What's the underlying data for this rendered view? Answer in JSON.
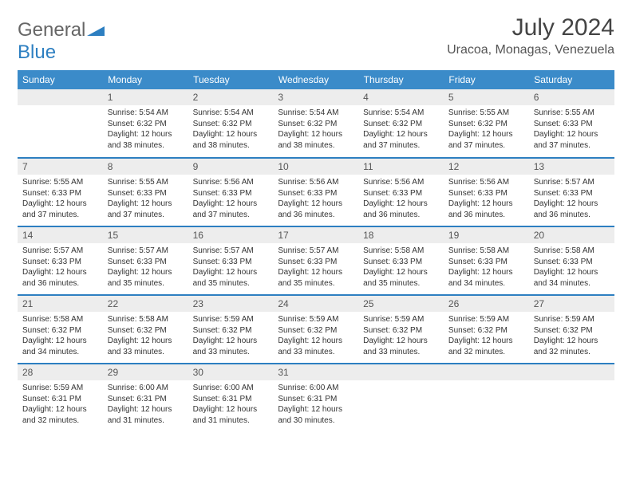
{
  "logo": {
    "general": "General",
    "blue": "Blue"
  },
  "title": "July 2024",
  "location": "Uracoa, Monagas, Venezuela",
  "colors": {
    "header_bg": "#3b8bc9",
    "header_text": "#ffffff",
    "row_border": "#2d7fc1",
    "daynum_bg": "#ededed",
    "logo_blue": "#2d7fc1"
  },
  "weekdays": [
    "Sunday",
    "Monday",
    "Tuesday",
    "Wednesday",
    "Thursday",
    "Friday",
    "Saturday"
  ],
  "start_offset": 1,
  "days": [
    {
      "n": 1,
      "sunrise": "5:54 AM",
      "sunset": "6:32 PM",
      "daylight": "12 hours and 38 minutes."
    },
    {
      "n": 2,
      "sunrise": "5:54 AM",
      "sunset": "6:32 PM",
      "daylight": "12 hours and 38 minutes."
    },
    {
      "n": 3,
      "sunrise": "5:54 AM",
      "sunset": "6:32 PM",
      "daylight": "12 hours and 38 minutes."
    },
    {
      "n": 4,
      "sunrise": "5:54 AM",
      "sunset": "6:32 PM",
      "daylight": "12 hours and 37 minutes."
    },
    {
      "n": 5,
      "sunrise": "5:55 AM",
      "sunset": "6:32 PM",
      "daylight": "12 hours and 37 minutes."
    },
    {
      "n": 6,
      "sunrise": "5:55 AM",
      "sunset": "6:33 PM",
      "daylight": "12 hours and 37 minutes."
    },
    {
      "n": 7,
      "sunrise": "5:55 AM",
      "sunset": "6:33 PM",
      "daylight": "12 hours and 37 minutes."
    },
    {
      "n": 8,
      "sunrise": "5:55 AM",
      "sunset": "6:33 PM",
      "daylight": "12 hours and 37 minutes."
    },
    {
      "n": 9,
      "sunrise": "5:56 AM",
      "sunset": "6:33 PM",
      "daylight": "12 hours and 37 minutes."
    },
    {
      "n": 10,
      "sunrise": "5:56 AM",
      "sunset": "6:33 PM",
      "daylight": "12 hours and 36 minutes."
    },
    {
      "n": 11,
      "sunrise": "5:56 AM",
      "sunset": "6:33 PM",
      "daylight": "12 hours and 36 minutes."
    },
    {
      "n": 12,
      "sunrise": "5:56 AM",
      "sunset": "6:33 PM",
      "daylight": "12 hours and 36 minutes."
    },
    {
      "n": 13,
      "sunrise": "5:57 AM",
      "sunset": "6:33 PM",
      "daylight": "12 hours and 36 minutes."
    },
    {
      "n": 14,
      "sunrise": "5:57 AM",
      "sunset": "6:33 PM",
      "daylight": "12 hours and 36 minutes."
    },
    {
      "n": 15,
      "sunrise": "5:57 AM",
      "sunset": "6:33 PM",
      "daylight": "12 hours and 35 minutes."
    },
    {
      "n": 16,
      "sunrise": "5:57 AM",
      "sunset": "6:33 PM",
      "daylight": "12 hours and 35 minutes."
    },
    {
      "n": 17,
      "sunrise": "5:57 AM",
      "sunset": "6:33 PM",
      "daylight": "12 hours and 35 minutes."
    },
    {
      "n": 18,
      "sunrise": "5:58 AM",
      "sunset": "6:33 PM",
      "daylight": "12 hours and 35 minutes."
    },
    {
      "n": 19,
      "sunrise": "5:58 AM",
      "sunset": "6:33 PM",
      "daylight": "12 hours and 34 minutes."
    },
    {
      "n": 20,
      "sunrise": "5:58 AM",
      "sunset": "6:33 PM",
      "daylight": "12 hours and 34 minutes."
    },
    {
      "n": 21,
      "sunrise": "5:58 AM",
      "sunset": "6:32 PM",
      "daylight": "12 hours and 34 minutes."
    },
    {
      "n": 22,
      "sunrise": "5:58 AM",
      "sunset": "6:32 PM",
      "daylight": "12 hours and 33 minutes."
    },
    {
      "n": 23,
      "sunrise": "5:59 AM",
      "sunset": "6:32 PM",
      "daylight": "12 hours and 33 minutes."
    },
    {
      "n": 24,
      "sunrise": "5:59 AM",
      "sunset": "6:32 PM",
      "daylight": "12 hours and 33 minutes."
    },
    {
      "n": 25,
      "sunrise": "5:59 AM",
      "sunset": "6:32 PM",
      "daylight": "12 hours and 33 minutes."
    },
    {
      "n": 26,
      "sunrise": "5:59 AM",
      "sunset": "6:32 PM",
      "daylight": "12 hours and 32 minutes."
    },
    {
      "n": 27,
      "sunrise": "5:59 AM",
      "sunset": "6:32 PM",
      "daylight": "12 hours and 32 minutes."
    },
    {
      "n": 28,
      "sunrise": "5:59 AM",
      "sunset": "6:31 PM",
      "daylight": "12 hours and 32 minutes."
    },
    {
      "n": 29,
      "sunrise": "6:00 AM",
      "sunset": "6:31 PM",
      "daylight": "12 hours and 31 minutes."
    },
    {
      "n": 30,
      "sunrise": "6:00 AM",
      "sunset": "6:31 PM",
      "daylight": "12 hours and 31 minutes."
    },
    {
      "n": 31,
      "sunrise": "6:00 AM",
      "sunset": "6:31 PM",
      "daylight": "12 hours and 30 minutes."
    }
  ],
  "labels": {
    "sunrise": "Sunrise:",
    "sunset": "Sunset:",
    "daylight": "Daylight:"
  }
}
